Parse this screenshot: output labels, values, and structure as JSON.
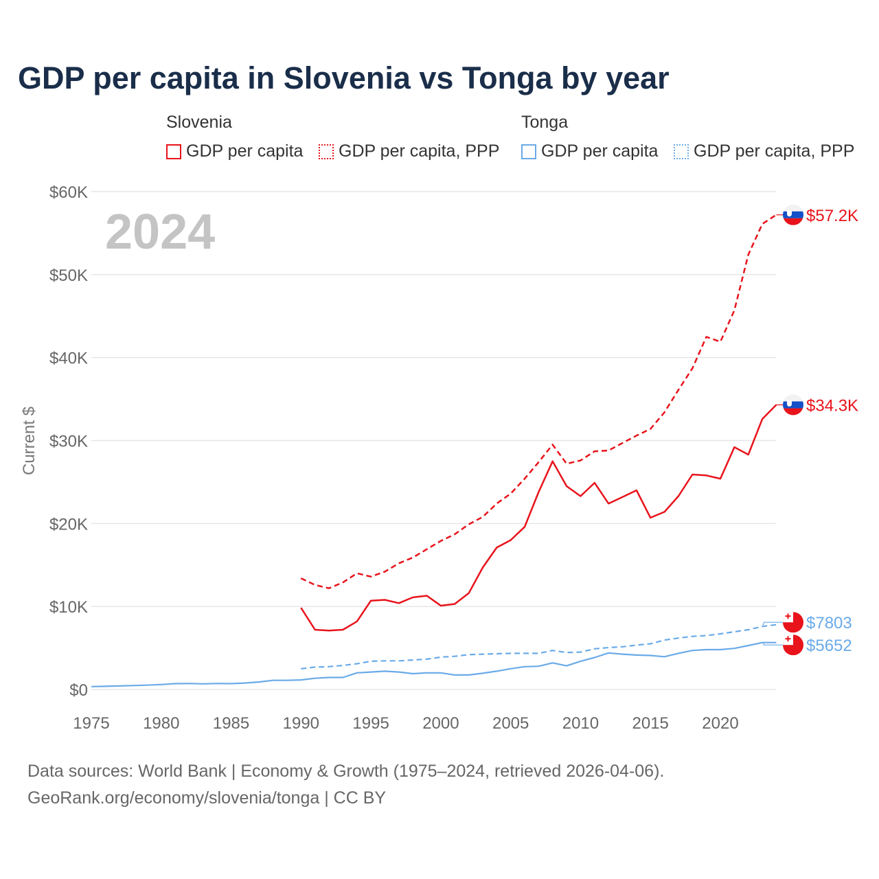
{
  "title": "GDP per capita in Slovenia vs Tonga by year",
  "legend": {
    "groups": [
      {
        "name": "Slovenia",
        "items": [
          "GDP per capita",
          "GDP per capita, PPP"
        ],
        "color": "#e8131b"
      },
      {
        "name": "Tonga",
        "items": [
          "GDP per capita",
          "GDP per capita, PPP"
        ],
        "color": "#6aaae8"
      }
    ]
  },
  "year_label": "2024",
  "footer": {
    "line1": "Data sources: World Bank | Economy & Growth (1975–2024, retrieved 2026-04-06).",
    "line2": "GeoRank.org/economy/slovenia/tonga | CC BY"
  },
  "chart_data": {
    "type": "line",
    "title": "GDP per capita in Slovenia vs Tonga by year",
    "xlabel": "",
    "ylabel": "Current $",
    "xlim": [
      1975,
      2024
    ],
    "ylim": [
      0,
      60000
    ],
    "x_ticks": [
      "1975",
      "1980",
      "1985",
      "1990",
      "1995",
      "2000",
      "2005",
      "2010",
      "2015",
      "2020"
    ],
    "x_tick_values": [
      1975,
      1980,
      1985,
      1990,
      1995,
      2000,
      2005,
      2010,
      2015,
      2020
    ],
    "y_ticks": [
      "$0",
      "$10K",
      "$20K",
      "$30K",
      "$40K",
      "$50K",
      "$60K"
    ],
    "y_tick_values": [
      0,
      10000,
      20000,
      30000,
      40000,
      50000,
      60000
    ],
    "grid": true,
    "legend_placement": "top",
    "series": [
      {
        "name": "Slovenia GDP per capita, PPP",
        "color": "#e8131b",
        "dash": true,
        "end_label": "$57.2K",
        "flag": "slovenia",
        "x": [
          1990,
          1991,
          1992,
          1993,
          1994,
          1995,
          1996,
          1997,
          1998,
          1999,
          2000,
          2001,
          2002,
          2003,
          2004,
          2005,
          2006,
          2007,
          2008,
          2009,
          2010,
          2011,
          2012,
          2013,
          2014,
          2015,
          2016,
          2017,
          2018,
          2019,
          2020,
          2021,
          2022,
          2023,
          2024
        ],
        "values": [
          13400,
          12600,
          12200,
          12900,
          14000,
          13600,
          14200,
          15200,
          15900,
          16900,
          17900,
          18700,
          19900,
          20800,
          22400,
          23600,
          25400,
          27400,
          29500,
          27200,
          27600,
          28700,
          28800,
          29700,
          30600,
          31400,
          33400,
          36100,
          38700,
          42500,
          41900,
          45700,
          52400,
          56100,
          57200
        ]
      },
      {
        "name": "Slovenia GDP per capita",
        "color": "#e8131b",
        "dash": false,
        "end_label": "$34.3K",
        "flag": "slovenia",
        "x": [
          1990,
          1991,
          1992,
          1993,
          1994,
          1995,
          1996,
          1997,
          1998,
          1999,
          2000,
          2001,
          2002,
          2003,
          2004,
          2005,
          2006,
          2007,
          2008,
          2009,
          2010,
          2011,
          2012,
          2013,
          2014,
          2015,
          2016,
          2017,
          2018,
          2019,
          2020,
          2021,
          2022,
          2023,
          2024
        ],
        "values": [
          9850,
          7200,
          7100,
          7200,
          8200,
          10700,
          10800,
          10400,
          11100,
          11300,
          10100,
          10300,
          11600,
          14700,
          17100,
          18000,
          19600,
          23800,
          27500,
          24500,
          23300,
          24900,
          22400,
          23200,
          24000,
          20700,
          21400,
          23300,
          25900,
          25800,
          25400,
          29200,
          28300,
          32600,
          34300
        ]
      },
      {
        "name": "Tonga GDP per capita, PPP",
        "color": "#6aaae8",
        "dash": true,
        "end_label": "$7803",
        "flag": "tonga",
        "x": [
          1990,
          1991,
          1992,
          1993,
          1994,
          1995,
          1996,
          1997,
          1998,
          1999,
          2000,
          2001,
          2002,
          2003,
          2004,
          2005,
          2006,
          2007,
          2008,
          2009,
          2010,
          2011,
          2012,
          2013,
          2014,
          2015,
          2016,
          2017,
          2018,
          2019,
          2020,
          2021,
          2022,
          2023,
          2024
        ],
        "values": [
          2500,
          2700,
          2750,
          2900,
          3100,
          3400,
          3450,
          3450,
          3550,
          3650,
          3900,
          4000,
          4200,
          4250,
          4300,
          4350,
          4350,
          4350,
          4700,
          4450,
          4500,
          4900,
          5050,
          5150,
          5350,
          5500,
          5950,
          6200,
          6400,
          6500,
          6700,
          6950,
          7200,
          7600,
          7803
        ]
      },
      {
        "name": "Tonga GDP per capita",
        "color": "#6aaae8",
        "dash": false,
        "end_label": "$5652",
        "flag": "tonga",
        "x": [
          1975,
          1976,
          1977,
          1978,
          1979,
          1980,
          1981,
          1982,
          1983,
          1984,
          1985,
          1986,
          1987,
          1988,
          1989,
          1990,
          1991,
          1992,
          1993,
          1994,
          1995,
          1996,
          1997,
          1998,
          1999,
          2000,
          2001,
          2002,
          2003,
          2004,
          2005,
          2006,
          2007,
          2008,
          2009,
          2010,
          2011,
          2012,
          2013,
          2014,
          2015,
          2016,
          2017,
          2018,
          2019,
          2020,
          2021,
          2022,
          2023,
          2024
        ],
        "values": [
          350,
          380,
          420,
          470,
          520,
          600,
          700,
          720,
          680,
          720,
          700,
          780,
          900,
          1100,
          1100,
          1150,
          1350,
          1450,
          1450,
          2000,
          2100,
          2200,
          2100,
          1900,
          2000,
          2000,
          1750,
          1750,
          1950,
          2200,
          2500,
          2750,
          2800,
          3200,
          2850,
          3400,
          3850,
          4400,
          4250,
          4150,
          4100,
          3950,
          4350,
          4700,
          4800,
          4800,
          4950,
          5300,
          5652,
          5652
        ]
      }
    ]
  }
}
